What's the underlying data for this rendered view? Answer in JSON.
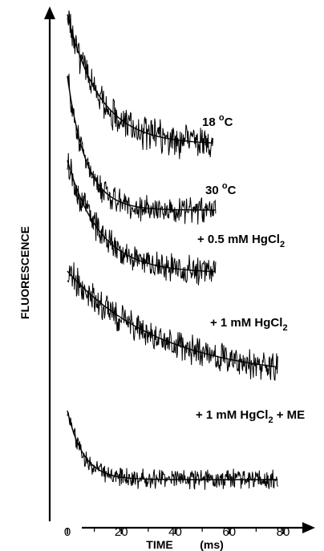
{
  "chart_data": {
    "type": "line",
    "title": "",
    "xlabel": "TIME",
    "xlabel_unit": "(ms)",
    "ylabel": "FLUORESCENCE",
    "xlim": [
      -5,
      85
    ],
    "xticks": [
      0,
      20,
      40,
      60,
      80
    ],
    "y_axis_numbered": false,
    "grid": false,
    "legend": "none",
    "trace_color": "#000000",
    "series": [
      {
        "name": "18 °C",
        "label": {
          "main": "18 ",
          "sup": "o",
          "tail": "C"
        },
        "duration_ms": 54,
        "start": 1.0,
        "plateau": 0.0,
        "tau_ms": 12,
        "offset": 1.0,
        "noise": 0.09
      },
      {
        "name": "30 °C",
        "label": {
          "main": "30 ",
          "sup": "o",
          "tail": "C"
        },
        "duration_ms": 55,
        "start": 1.0,
        "plateau": 0.0,
        "tau_ms": 7,
        "offset": 0.5,
        "noise": 0.07
      },
      {
        "name": "+ 0.5 mM HgCl2",
        "label": {
          "main": "+ 0.5 mM HgCl",
          "sub": "2",
          "tail": ""
        },
        "duration_ms": 55,
        "start": 0.63,
        "plateau": 0.0,
        "tau_ms": 12,
        "offset": 0.0,
        "noise": 0.09
      },
      {
        "name": "+ 1 mM HgCl2",
        "label": {
          "main": "+ 1 mM HgCl",
          "sub": "2",
          "tail": ""
        },
        "duration_ms": 78,
        "start": 0.65,
        "plateau": 0.0,
        "tau_ms": 35,
        "offset": -0.75,
        "noise": 0.1
      },
      {
        "name": "+ 1 mM HgCl2 + ME",
        "label": {
          "main": "+ 1 mM HgCl",
          "sub": "2",
          "tail": " + ME"
        },
        "duration_ms": 78,
        "start": 0.9,
        "plateau": 0.0,
        "tau_ms": 6,
        "offset": -1.9,
        "noise": 0.1
      }
    ]
  }
}
